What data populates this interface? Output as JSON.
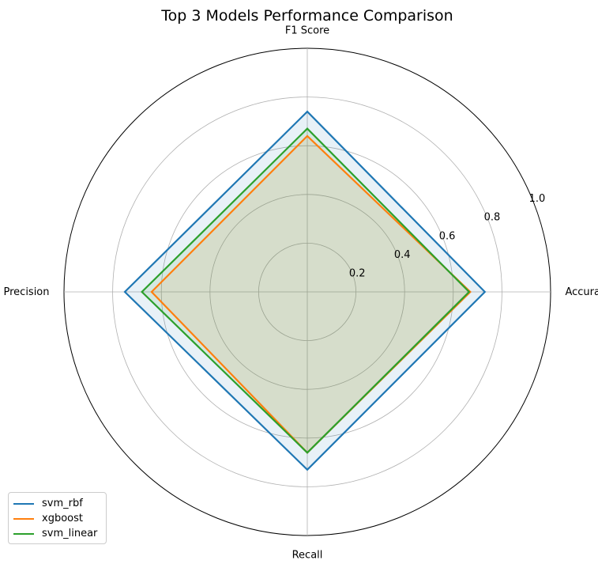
{
  "chart_data": {
    "type": "radar",
    "title": "Top 3 Models Performance Comparison",
    "axes": [
      "Accuracy",
      "F1 Score",
      "Precision",
      "Recall"
    ],
    "rlim": [
      0,
      1.0
    ],
    "rticks": [
      0.2,
      0.4,
      0.6,
      0.8,
      1.0
    ],
    "rtick_labels": [
      "0.2",
      "0.4",
      "0.6",
      "0.8",
      "1.0"
    ],
    "grid": true,
    "legend_position": "lower-left",
    "series": [
      {
        "name": "svm_rbf",
        "color": "#1f77b4",
        "values": [
          0.73,
          0.74,
          0.75,
          0.73
        ]
      },
      {
        "name": "xgboost",
        "color": "#ff7f0e",
        "values": [
          0.67,
          0.64,
          0.64,
          0.66
        ]
      },
      {
        "name": "svm_linear",
        "color": "#2ca02c",
        "values": [
          0.665,
          0.67,
          0.68,
          0.66
        ]
      }
    ]
  }
}
